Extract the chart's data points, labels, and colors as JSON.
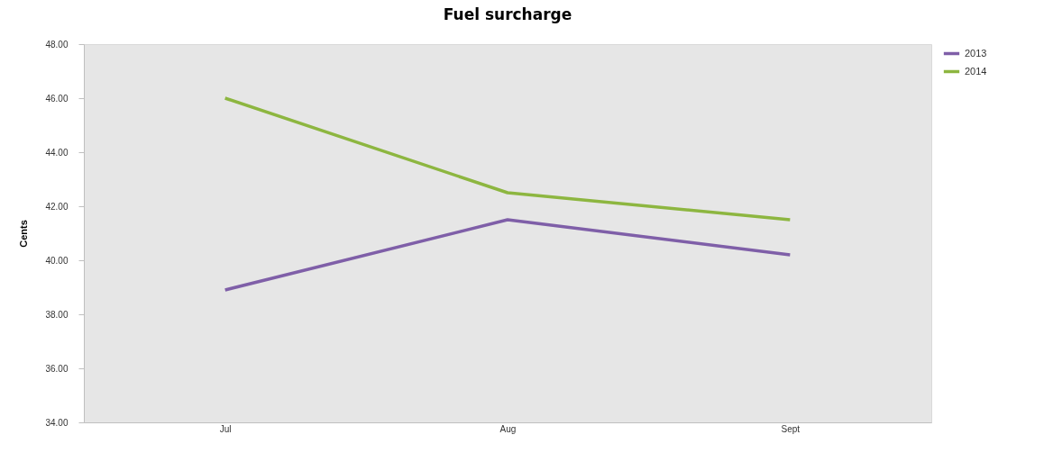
{
  "chart_data": {
    "type": "line",
    "title": "Fuel surcharge",
    "ylabel": "Cents",
    "categories": [
      "Jul",
      "Aug",
      "Sept"
    ],
    "series": [
      {
        "name": "2013",
        "color": "#7f5fa8",
        "values": [
          38.9,
          41.5,
          40.2
        ]
      },
      {
        "name": "2014",
        "color": "#8db640",
        "values": [
          46.0,
          42.5,
          41.5
        ]
      }
    ],
    "ylim": [
      34,
      48
    ],
    "yticks": [
      {
        "value": 34,
        "label": "34.00"
      },
      {
        "value": 36,
        "label": "36.00"
      },
      {
        "value": 38,
        "label": "38.00"
      },
      {
        "value": 40,
        "label": "40.00"
      },
      {
        "value": 42,
        "label": "42.00"
      },
      {
        "value": 44,
        "label": "44.00"
      },
      {
        "value": 46,
        "label": "46.00"
      },
      {
        "value": 48,
        "label": "48.00"
      }
    ],
    "grid": false,
    "legend": "right",
    "marker": "none",
    "line_style": "solid"
  }
}
